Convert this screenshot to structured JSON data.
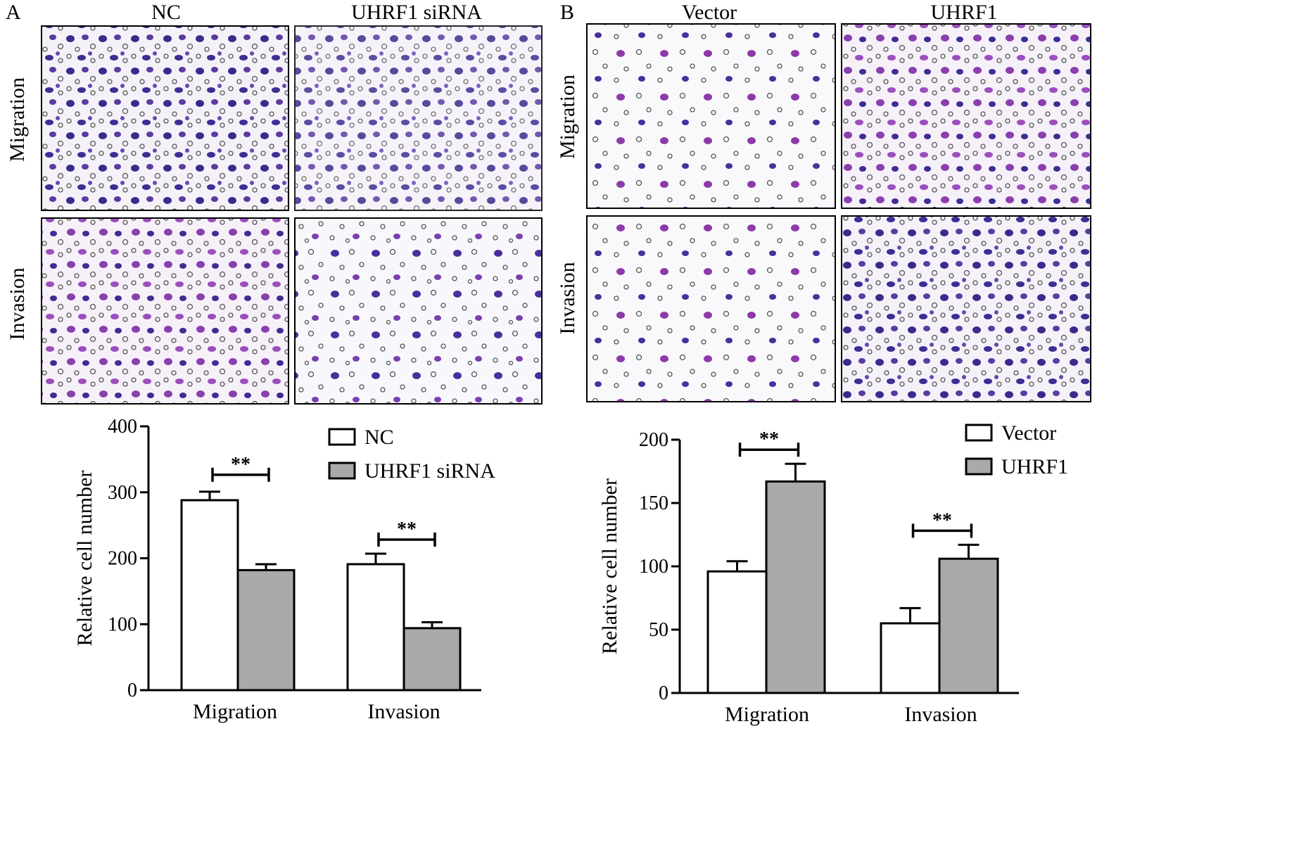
{
  "panels": [
    {
      "letter": "A",
      "columns": [
        "NC",
        "UHRF1 siRNA"
      ],
      "rows": [
        "Migration",
        "Invasion"
      ]
    },
    {
      "letter": "B",
      "columns": [
        "Vector",
        "UHRF1"
      ],
      "rows": [
        "Migration",
        "Invasion"
      ]
    }
  ],
  "chart_data": [
    {
      "type": "bar",
      "panel": "A",
      "categories": [
        "Migration",
        "Invasion"
      ],
      "series": [
        {
          "name": "NC",
          "values": [
            288,
            191
          ],
          "errors": [
            13,
            16
          ],
          "color": "#ffffff"
        },
        {
          "name": "UHRF1 siRNA",
          "values": [
            182,
            94
          ],
          "errors": [
            9,
            9
          ],
          "color": "#a9a9a9"
        }
      ],
      "ylabel": "Relative cell number",
      "xlabel": "",
      "ylim": [
        0,
        400
      ],
      "yticks": [
        "0",
        "100",
        "200",
        "300",
        "400"
      ],
      "significance": [
        "**",
        "**"
      ],
      "legend_position": "top-right"
    },
    {
      "type": "bar",
      "panel": "B",
      "categories": [
        "Migration",
        "Invasion"
      ],
      "series": [
        {
          "name": "Vector",
          "values": [
            96,
            55
          ],
          "errors": [
            8,
            12
          ],
          "color": "#ffffff"
        },
        {
          "name": "UHRF1",
          "values": [
            167,
            106
          ],
          "errors": [
            14,
            11
          ],
          "color": "#a9a9a9"
        }
      ],
      "ylabel": "Relative cell number",
      "xlabel": "",
      "ylim": [
        0,
        200
      ],
      "yticks": [
        "0",
        "50",
        "100",
        "150",
        "200"
      ],
      "significance": [
        "**",
        "**"
      ],
      "legend_position": "top-right"
    }
  ]
}
